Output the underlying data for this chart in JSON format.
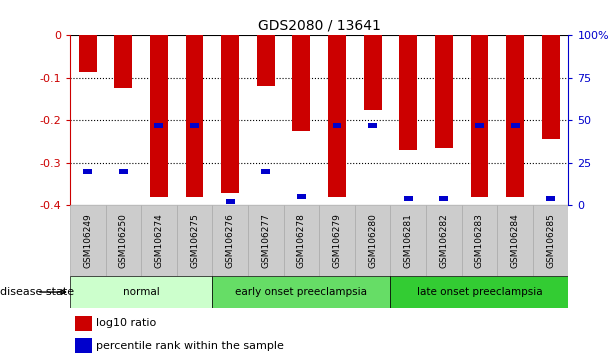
{
  "title": "GDS2080 / 13641",
  "samples": [
    "GSM106249",
    "GSM106250",
    "GSM106274",
    "GSM106275",
    "GSM106276",
    "GSM106277",
    "GSM106278",
    "GSM106279",
    "GSM106280",
    "GSM106281",
    "GSM106282",
    "GSM106283",
    "GSM106284",
    "GSM106285"
  ],
  "log10_values": [
    -0.085,
    -0.125,
    -0.38,
    -0.38,
    -0.37,
    -0.12,
    -0.225,
    -0.38,
    -0.175,
    -0.27,
    -0.265,
    -0.38,
    -0.38,
    -0.245
  ],
  "percentile_values": [
    20,
    20,
    47,
    47,
    2,
    20,
    5,
    47,
    47,
    4,
    4,
    47,
    47,
    4
  ],
  "ylim": [
    -0.4,
    0.0
  ],
  "yticks_left": [
    0,
    -0.1,
    -0.2,
    -0.3,
    -0.4
  ],
  "right_ytick_pcts": [
    100,
    75,
    50,
    25,
    0
  ],
  "bar_color": "#cc0000",
  "blue_color": "#0000cc",
  "groups": [
    {
      "label": "normal",
      "start": 0,
      "end": 4,
      "color": "#ccffcc"
    },
    {
      "label": "early onset preeclampsia",
      "start": 4,
      "end": 9,
      "color": "#66dd66"
    },
    {
      "label": "late onset preeclampsia",
      "start": 9,
      "end": 14,
      "color": "#33cc33"
    }
  ],
  "legend_labels": [
    "log10 ratio",
    "percentile rank within the sample"
  ],
  "legend_colors": [
    "#cc0000",
    "#0000cc"
  ],
  "disease_state_label": "disease state",
  "bg_color": "#ffffff",
  "bar_width": 0.5,
  "blue_bar_width": 0.25,
  "blue_bar_height": 0.012,
  "axis_color_left": "#cc0000",
  "axis_color_right": "#0000cc",
  "tick_bg_color": "#cccccc",
  "tick_edge_color": "#aaaaaa",
  "grid_linestyle": "dotted",
  "grid_color": "#000000",
  "grid_linewidth": 0.8,
  "spine_linewidth": 0.8
}
